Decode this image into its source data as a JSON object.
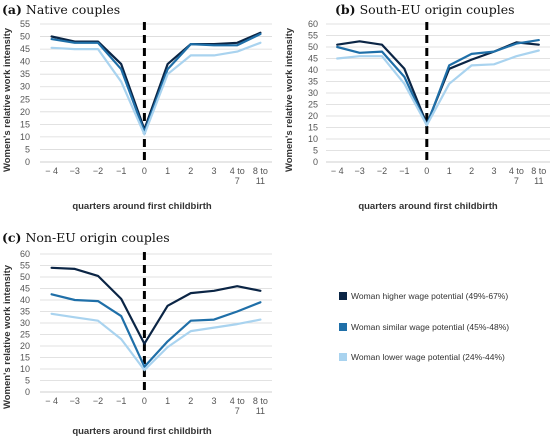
{
  "chart_data": [
    {
      "type": "line",
      "title_label": "(a)",
      "title_text": "Native couples",
      "xlabel": "quarters around first childbirth",
      "ylabel": "Women's relative work intensity",
      "categories": [
        [
          "− 4"
        ],
        [
          "−3"
        ],
        [
          "−2"
        ],
        [
          "−1"
        ],
        [
          "0"
        ],
        [
          "1"
        ],
        [
          "2"
        ],
        [
          "3"
        ],
        [
          "4 to",
          "7"
        ],
        [
          "8 to",
          "11"
        ]
      ],
      "ylim": [
        0,
        55
      ],
      "yticks": [
        0,
        5,
        10,
        15,
        20,
        25,
        30,
        35,
        40,
        45,
        50,
        55
      ],
      "series": [
        {
          "values": [
            50,
            48,
            48,
            39,
            13,
            39,
            47,
            47,
            47.5,
            51.5
          ]
        },
        {
          "values": [
            49,
            47.5,
            47.5,
            37,
            12,
            37,
            47,
            46.5,
            46.5,
            51
          ]
        },
        {
          "values": [
            45.5,
            45,
            45,
            32,
            11,
            35,
            42.5,
            42.5,
            44,
            47.5
          ]
        }
      ]
    },
    {
      "type": "line",
      "title_label": "(b)",
      "title_text": "South-EU origin couples",
      "xlabel": "quarters around first childbirth",
      "ylabel": "Women's relative work intensity",
      "categories": [
        [
          "− 4"
        ],
        [
          "−3"
        ],
        [
          "−2"
        ],
        [
          "−1"
        ],
        [
          "0"
        ],
        [
          "1"
        ],
        [
          "2"
        ],
        [
          "3"
        ],
        [
          "4 to",
          "7"
        ],
        [
          "8 to",
          "11"
        ]
      ],
      "ylim": [
        0,
        60
      ],
      "yticks": [
        0,
        5,
        10,
        15,
        20,
        25,
        30,
        35,
        40,
        45,
        50,
        55,
        60
      ],
      "series": [
        {
          "values": [
            51,
            52.5,
            51,
            40.5,
            16.5,
            40.5,
            44.5,
            48,
            52,
            51
          ]
        },
        {
          "values": [
            50,
            47.5,
            48,
            37,
            16,
            42,
            47,
            48,
            51.5,
            53
          ]
        },
        {
          "values": [
            45,
            46,
            46,
            34,
            16,
            34,
            42,
            42.5,
            46,
            48.5
          ]
        }
      ]
    },
    {
      "type": "line",
      "title_label": "(c)",
      "title_text": "Non-EU origin couples",
      "xlabel": "quarters around first childbirth",
      "ylabel": "Women's relative work intensity",
      "categories": [
        [
          "− 4"
        ],
        [
          "−3"
        ],
        [
          "−2"
        ],
        [
          "−1"
        ],
        [
          "0"
        ],
        [
          "1"
        ],
        [
          "2"
        ],
        [
          "3"
        ],
        [
          "4 to",
          "7"
        ],
        [
          "8 to",
          "11"
        ]
      ],
      "ylim": [
        0,
        60
      ],
      "yticks": [
        0,
        5,
        10,
        15,
        20,
        25,
        30,
        35,
        40,
        45,
        50,
        55,
        60
      ],
      "series": [
        {
          "values": [
            54,
            53.5,
            50.5,
            40.5,
            21,
            37.5,
            43,
            44,
            46,
            44
          ]
        },
        {
          "values": [
            42.5,
            40,
            39.5,
            33,
            11,
            22,
            31,
            31.5,
            35,
            39
          ]
        },
        {
          "values": [
            34,
            32.5,
            31,
            23,
            9.5,
            19.5,
            26.5,
            28,
            29.5,
            31.5
          ]
        }
      ]
    }
  ],
  "legend": [
    {
      "label": "Woman higher wage potential (49%-67%)",
      "color": "#0b2545"
    },
    {
      "label": "Woman similar wage potential (45%-48%)",
      "color": "#1f6fa8"
    },
    {
      "label": "Woman lower wage potential (24%-44%)",
      "color": "#a9d3ef"
    }
  ],
  "colors": [
    "#0b2545",
    "#1f6fa8",
    "#a9d3ef"
  ]
}
